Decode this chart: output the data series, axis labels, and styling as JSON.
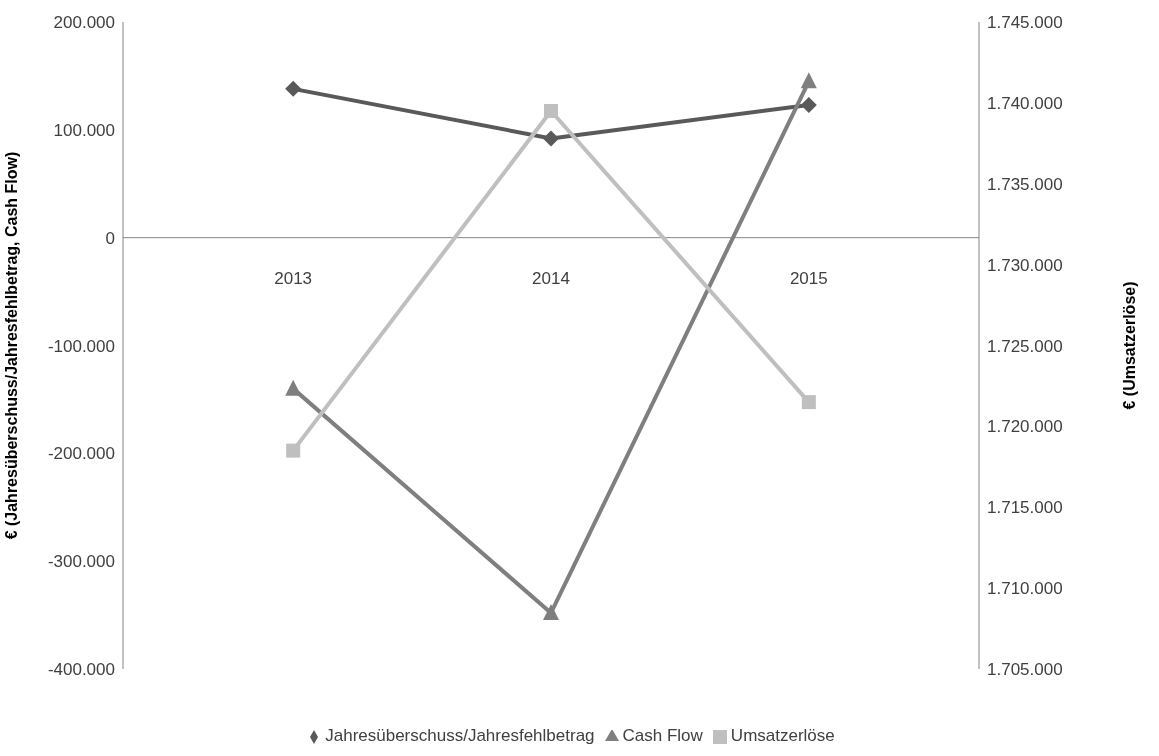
{
  "chart_data": {
    "type": "line",
    "categories": [
      "2013",
      "2014",
      "2015"
    ],
    "ylabel": "€ (Jahresüberschuss/Jahresfehlbetrag,  Cash Flow)",
    "y2label": "€ (Umsatzerlöse)",
    "series": [
      {
        "name": "Jahresüberschuss/Jahresfehlbetrag",
        "color": "#595959",
        "marker": "diamond",
        "values": [
          138000,
          92000,
          123000
        ]
      },
      {
        "name": "Cash Flow",
        "color": "#7f7f7f",
        "marker": "triangle",
        "values": [
          -140000,
          -348000,
          145000
        ]
      },
      {
        "name": "Umsatzerlöse",
        "color": "#bfbfbf",
        "marker": "square",
        "axis": "y2",
        "values": [
          1718500,
          1739500,
          1721500
        ]
      }
    ],
    "ylim": [
      -400000,
      200000
    ],
    "yticks": [
      {
        "value": -400000,
        "label": "-400.000"
      },
      {
        "value": -300000,
        "label": "-300.000"
      },
      {
        "value": -200000,
        "label": "-200.000"
      },
      {
        "value": -100000,
        "label": "-100.000"
      },
      0,
      {
        "value": 100000,
        "label": "100.000"
      },
      {
        "value": 200000,
        "label": "200.000"
      }
    ],
    "y2lim": [
      1705000,
      1745000
    ],
    "y2ticks": [
      {
        "value": 1705000,
        "label": "1.705.000"
      },
      {
        "value": 1710000,
        "label": "1.710.000"
      },
      {
        "value": 1715000,
        "label": "1.715.000"
      },
      {
        "value": 1720000,
        "label": "1.720.000"
      },
      {
        "value": 1725000,
        "label": "1.725.000"
      },
      {
        "value": 1730000,
        "label": "1.730.000"
      },
      {
        "value": 1735000,
        "label": "1.735.000"
      },
      {
        "value": 1740000,
        "label": "1.740.000"
      },
      {
        "value": 1745000,
        "label": "1.745.000"
      }
    ],
    "legend": "bottom"
  }
}
